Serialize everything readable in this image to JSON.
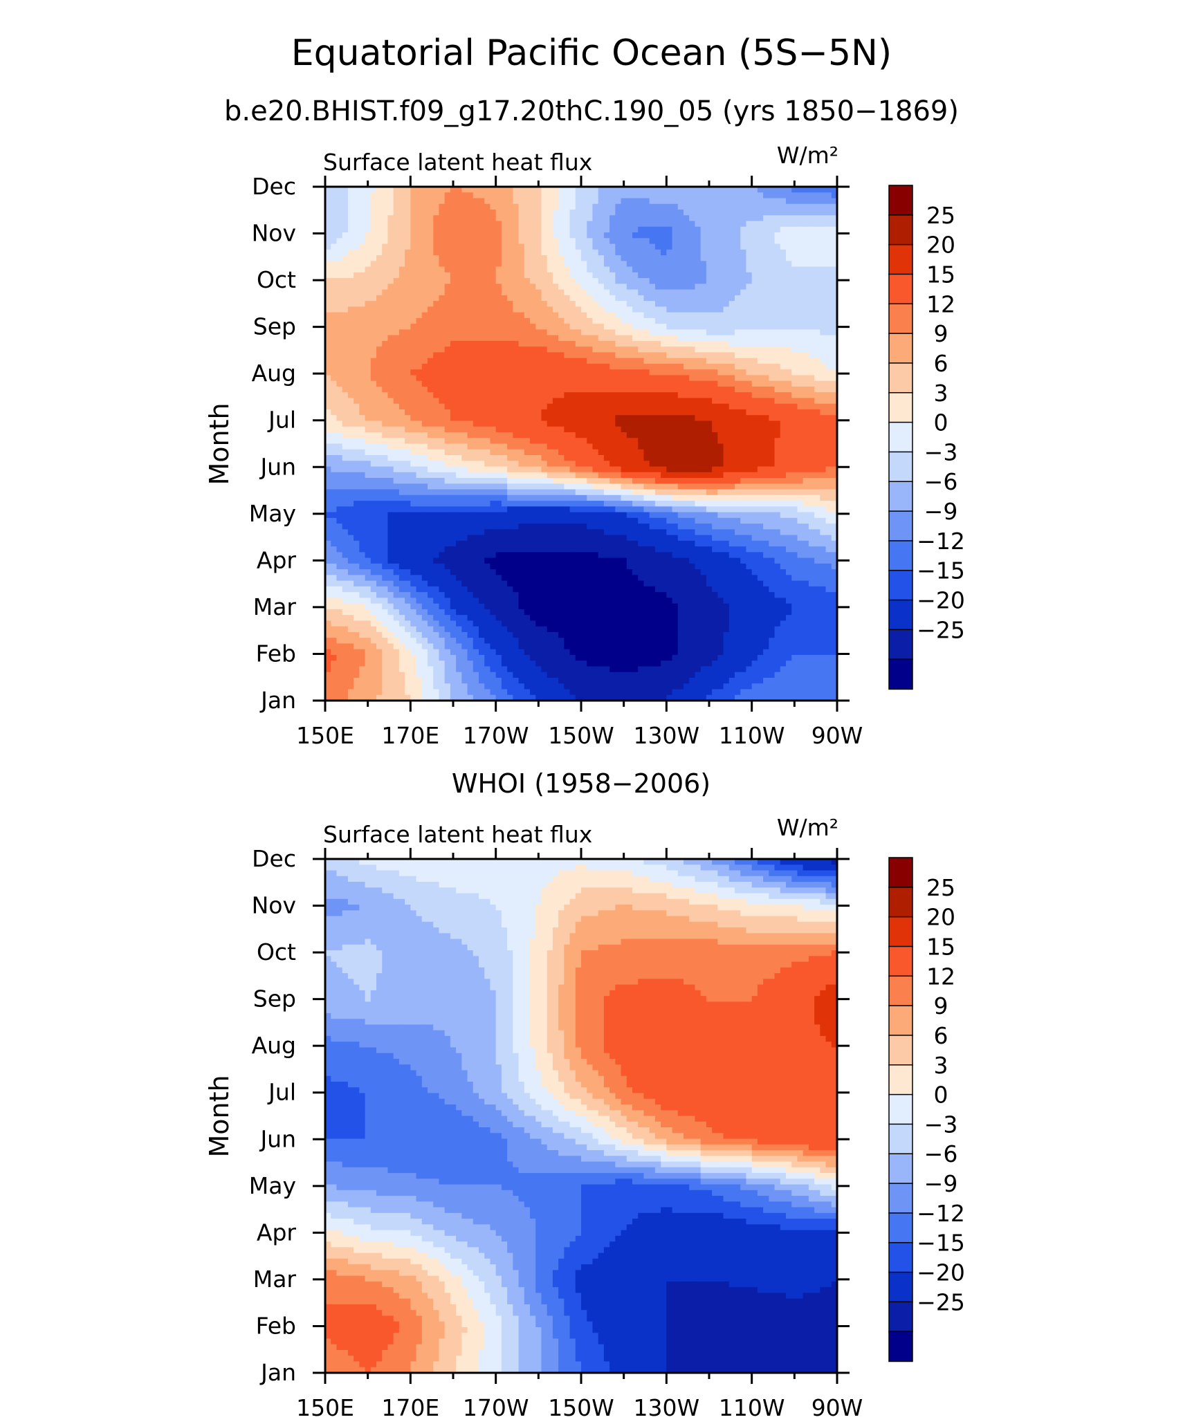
{
  "figure": {
    "title": "Equatorial Pacific Ocean (5S−5N)",
    "subtitle": "b.e20.BHIST.f09_g17.20thC.190_05 (yrs 1850−1869)"
  },
  "chart_data": [
    {
      "type": "heatmap",
      "title": "",
      "left_label": "Surface latent heat flux",
      "right_label": "W/m²",
      "xlabel": "",
      "ylabel": "Month",
      "x_ticklabels": [
        "150E",
        "170E",
        "170W",
        "150W",
        "130W",
        "110W",
        "90W"
      ],
      "x": [
        150,
        160,
        170,
        180,
        190,
        200,
        210,
        220,
        230,
        240,
        250,
        260,
        270
      ],
      "y_ticklabels": [
        "Jan",
        "Feb",
        "Mar",
        "Apr",
        "May",
        "Jun",
        "Jul",
        "Aug",
        "Sep",
        "Oct",
        "Nov",
        "Dec"
      ],
      "xlim": [
        150,
        270
      ],
      "levels": [
        -25,
        -20,
        -15,
        -12,
        -9,
        -6,
        -3,
        0,
        3,
        6,
        9,
        12,
        15,
        20,
        25
      ],
      "z": [
        [
          14,
          10,
          6,
          -3,
          -9,
          -15,
          -20,
          -22,
          -20,
          -14,
          -10,
          -9,
          -12
        ],
        [
          16,
          12,
          4,
          -6,
          -15,
          -22,
          -26,
          -27,
          -26,
          -22,
          -16,
          -12,
          -12
        ],
        [
          6,
          3,
          -6,
          -15,
          -22,
          -27,
          -27,
          -27,
          -26,
          -22,
          -18,
          -15,
          -14
        ],
        [
          -6,
          -12,
          -18,
          -22,
          -26,
          -27,
          -27,
          -25,
          -22,
          -18,
          -14,
          -10,
          -8
        ],
        [
          -12,
          -15,
          -15,
          -16,
          -17,
          -18,
          -18,
          -15,
          -10,
          -6,
          -4,
          -2,
          3
        ],
        [
          -6,
          -4,
          -1,
          3,
          6,
          10,
          15,
          22,
          27,
          27,
          22,
          18,
          15
        ],
        [
          5,
          9,
          12,
          15,
          17,
          20,
          23,
          26,
          27,
          25,
          22,
          19,
          16
        ],
        [
          9,
          12,
          15,
          17,
          18,
          19,
          18,
          16,
          15,
          13,
          9,
          6,
          3
        ],
        [
          10,
          11,
          12,
          14,
          14,
          12,
          8,
          4,
          0,
          -2,
          -1,
          0,
          -1
        ],
        [
          6,
          7,
          10,
          12,
          12,
          8,
          2,
          -4,
          -8,
          -6,
          -3,
          -1,
          -1
        ],
        [
          -3,
          3,
          9,
          15,
          13,
          6,
          -2,
          -9,
          -10,
          -5,
          -2,
          2,
          3
        ],
        [
          -3,
          2,
          9,
          12,
          11,
          6,
          -1,
          -5,
          -4,
          -3,
          -6,
          -10,
          -12
        ]
      ],
      "colorbar_labels": [
        "25",
        "20",
        "15",
        "12",
        "9",
        "6",
        "3",
        "0",
        "−3",
        "−6",
        "−9",
        "−12",
        "−15",
        "−20",
        "−25"
      ]
    },
    {
      "type": "heatmap",
      "title": "WHOI (1958−2006)",
      "left_label": "Surface latent heat flux",
      "right_label": "W/m²",
      "xlabel": "",
      "ylabel": "Month",
      "x_ticklabels": [
        "150E",
        "170E",
        "170W",
        "150W",
        "130W",
        "110W",
        "90W"
      ],
      "x": [
        150,
        160,
        170,
        180,
        190,
        200,
        210,
        220,
        230,
        240,
        250,
        260,
        270
      ],
      "y_ticklabels": [
        "Jan",
        "Feb",
        "Mar",
        "Apr",
        "May",
        "Jun",
        "Jul",
        "Aug",
        "Sep",
        "Oct",
        "Nov",
        "Dec"
      ],
      "xlim": [
        150,
        270
      ],
      "levels": [
        -25,
        -20,
        -15,
        -12,
        -9,
        -6,
        -3,
        0,
        3,
        6,
        9,
        12,
        15,
        20,
        25
      ],
      "z": [
        [
          12,
          15,
          12,
          6,
          1,
          -6,
          -12,
          -16,
          -20,
          -22,
          -22,
          -23,
          -25
        ],
        [
          16,
          18,
          14,
          8,
          1,
          -6,
          -14,
          -18,
          -20,
          -23,
          -24,
          -23,
          -22
        ],
        [
          14,
          12,
          10,
          4,
          -2,
          -10,
          -16,
          -18,
          -20,
          -20,
          -19,
          -18,
          -20
        ],
        [
          4,
          1,
          0,
          -4,
          -6,
          -9,
          -12,
          -15,
          -17,
          -18,
          -17,
          -16,
          -16
        ],
        [
          -6,
          -7,
          -8,
          -9,
          -9,
          -10,
          -12,
          -14,
          -13,
          -11,
          -8,
          -4,
          1
        ],
        [
          -12,
          -12,
          -12,
          -12,
          -10,
          -6,
          -2,
          4,
          10,
          14,
          16,
          18,
          20
        ],
        [
          -13,
          -12,
          -10,
          -8,
          -4,
          2,
          8,
          14,
          18,
          18,
          19,
          20,
          19
        ],
        [
          -10,
          -9,
          -8,
          -6,
          -3,
          4,
          13,
          17,
          19,
          19,
          18,
          19,
          20
        ],
        [
          -4,
          -3,
          -4,
          -5,
          -3,
          4,
          14,
          16,
          16,
          15,
          15,
          18,
          23
        ],
        [
          -3,
          -2,
          -5,
          -4,
          -2,
          4,
          12,
          13,
          14,
          14,
          13,
          14,
          15
        ],
        [
          -7,
          -6,
          -3,
          -1,
          0,
          3,
          8,
          9,
          8,
          6,
          4,
          3,
          1
        ],
        [
          -2,
          1,
          2,
          2,
          1,
          2,
          2,
          1,
          -2,
          -6,
          -12,
          -18,
          -22
        ]
      ],
      "colorbar_labels": [
        "25",
        "20",
        "15",
        "12",
        "9",
        "6",
        "3",
        "0",
        "−3",
        "−6",
        "−9",
        "−12",
        "−15",
        "−20",
        "−25"
      ]
    }
  ],
  "colors": {
    "fill_levels": [
      "#00008b",
      "#0a1ea8",
      "#0a32c8",
      "#2252e8",
      "#4676f2",
      "#6e94f6",
      "#9ab6fa",
      "#c4d8fc",
      "#e2eefe",
      "#fee8d2",
      "#fccaa6",
      "#fcaa78",
      "#fa804e",
      "#f8582c",
      "#e03408",
      "#b01e00",
      "#880000"
    ]
  }
}
